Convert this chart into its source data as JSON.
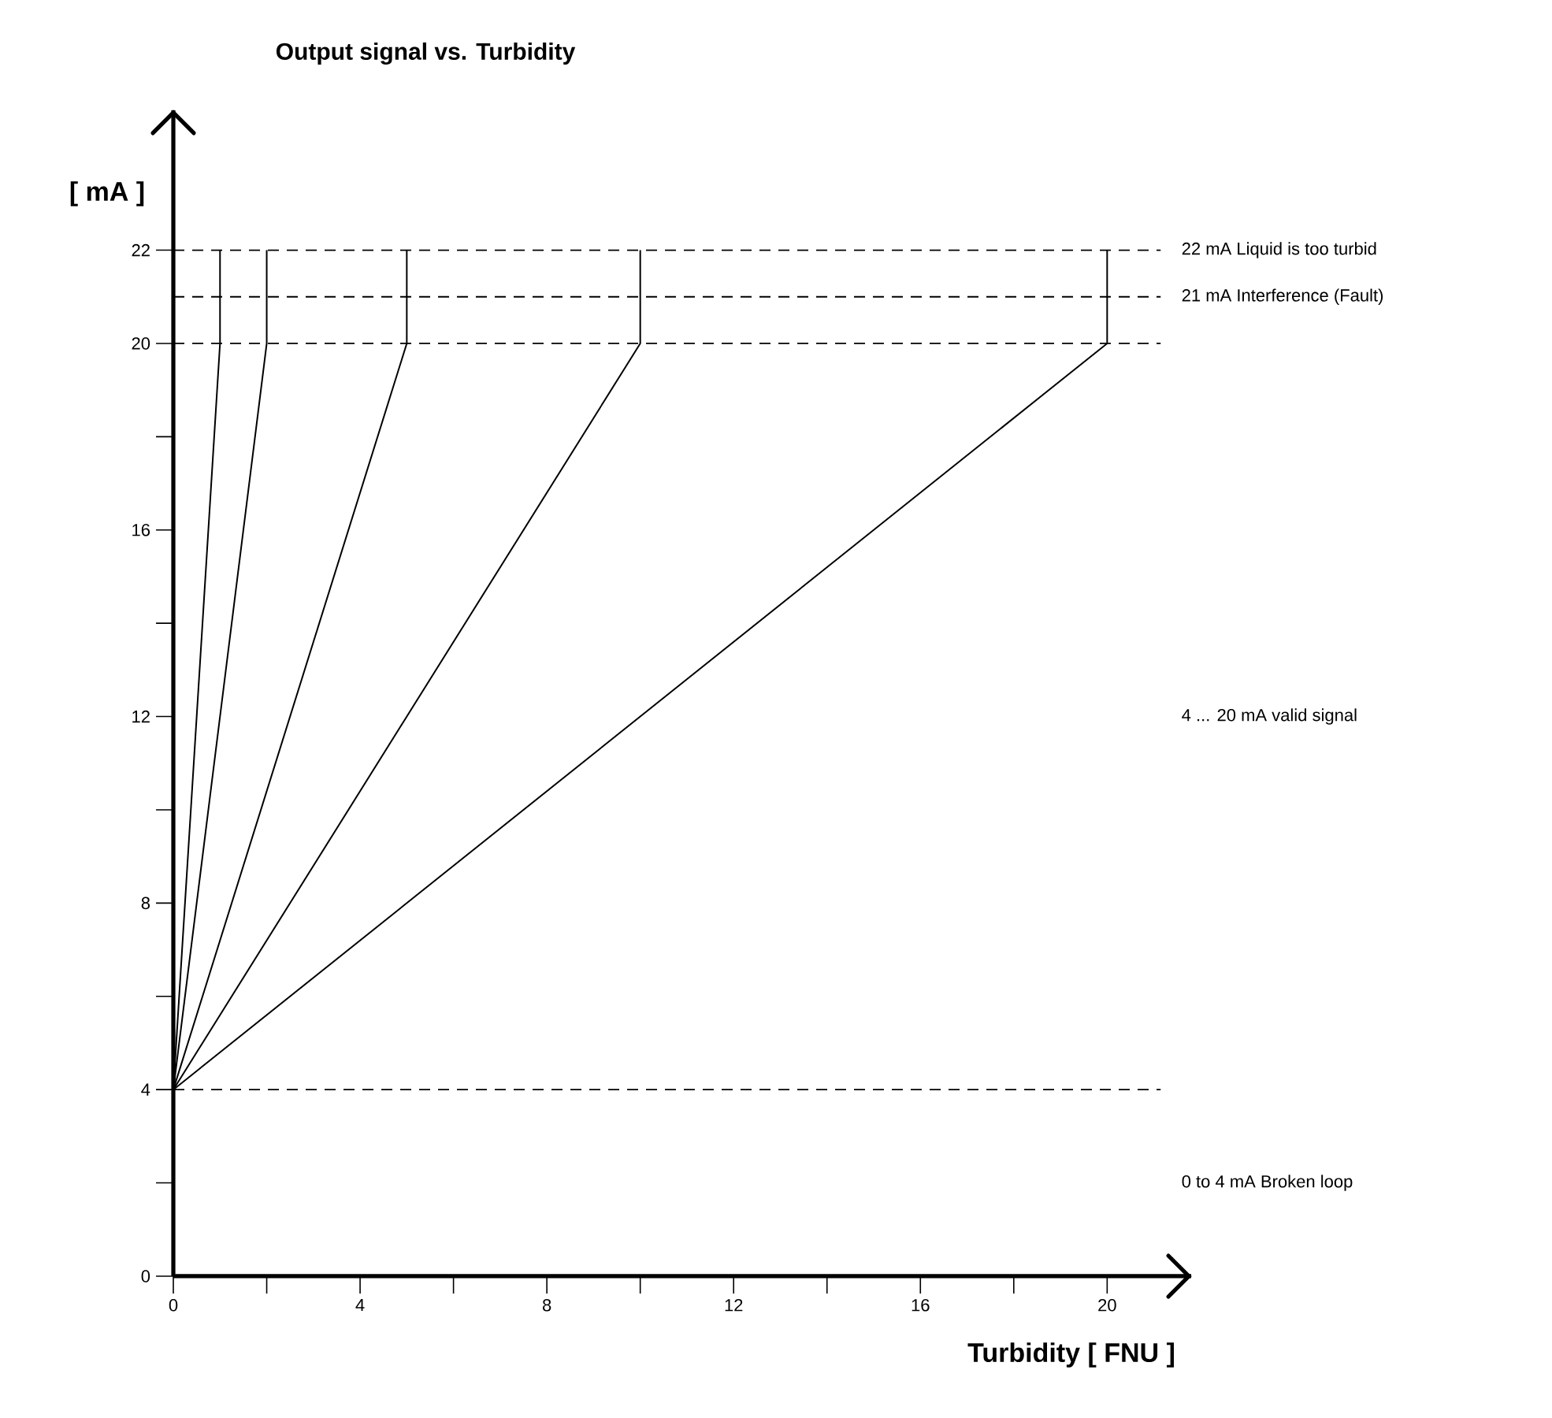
{
  "chart_data": {
    "type": "line",
    "title": "Output signal vs. Turbidity",
    "xlabel": "Turbidity [ FNU ]",
    "ylabel": "[ mA ]",
    "series": [
      {
        "color": "#000000",
        "x": [
          0,
          1,
          1
        ],
        "values": [
          4,
          20,
          22
        ]
      },
      {
        "color": "#000000",
        "x": [
          0,
          2,
          2
        ],
        "values": [
          4,
          20,
          22
        ]
      },
      {
        "color": "#000000",
        "x": [
          0,
          5,
          5
        ],
        "values": [
          4,
          20,
          22
        ]
      },
      {
        "color": "#000000",
        "x": [
          0,
          10,
          10
        ],
        "values": [
          4,
          20,
          22
        ]
      },
      {
        "color": "#000000",
        "x": [
          0,
          20,
          20
        ],
        "values": [
          4,
          20,
          22
        ]
      }
    ],
    "xlim": [
      0,
      21.8
    ],
    "ylim": [
      0,
      25
    ],
    "xticks": [
      0,
      {
        "value": 2,
        "label": null
      },
      4,
      {
        "value": 6,
        "label": null
      },
      8,
      {
        "value": 10,
        "label": null
      },
      12,
      {
        "value": 14,
        "label": null
      },
      16,
      {
        "value": 18,
        "label": null
      },
      20
    ],
    "yticks": [
      0,
      {
        "value": 2,
        "label": null
      },
      4,
      {
        "value": 6,
        "label": null
      },
      8,
      {
        "value": 10,
        "label": null
      },
      12,
      {
        "value": 14,
        "label": null
      },
      16,
      {
        "value": 18,
        "label": null
      },
      20,
      22
    ],
    "ref_lines": [
      {
        "axis": "y",
        "value": 22,
        "label": "22 mA Liquid is too turbid",
        "color": "#000000",
        "line_style": "dashed"
      },
      {
        "axis": "y",
        "value": 21,
        "label": "21 mA Interference (Fault)",
        "color": "#000000",
        "line_style": "dashed"
      },
      {
        "axis": "y",
        "value": 20,
        "color": "#000000",
        "line_style": "dashed"
      },
      {
        "axis": "y",
        "value": 4,
        "color": "#000000",
        "line_style": "dashed"
      }
    ],
    "annotations": [
      "4 ... 20 mA valid signal",
      "0 to 4 mA Broken loop"
    ],
    "grid": false,
    "marker": "none",
    "line_style": "solid"
  }
}
